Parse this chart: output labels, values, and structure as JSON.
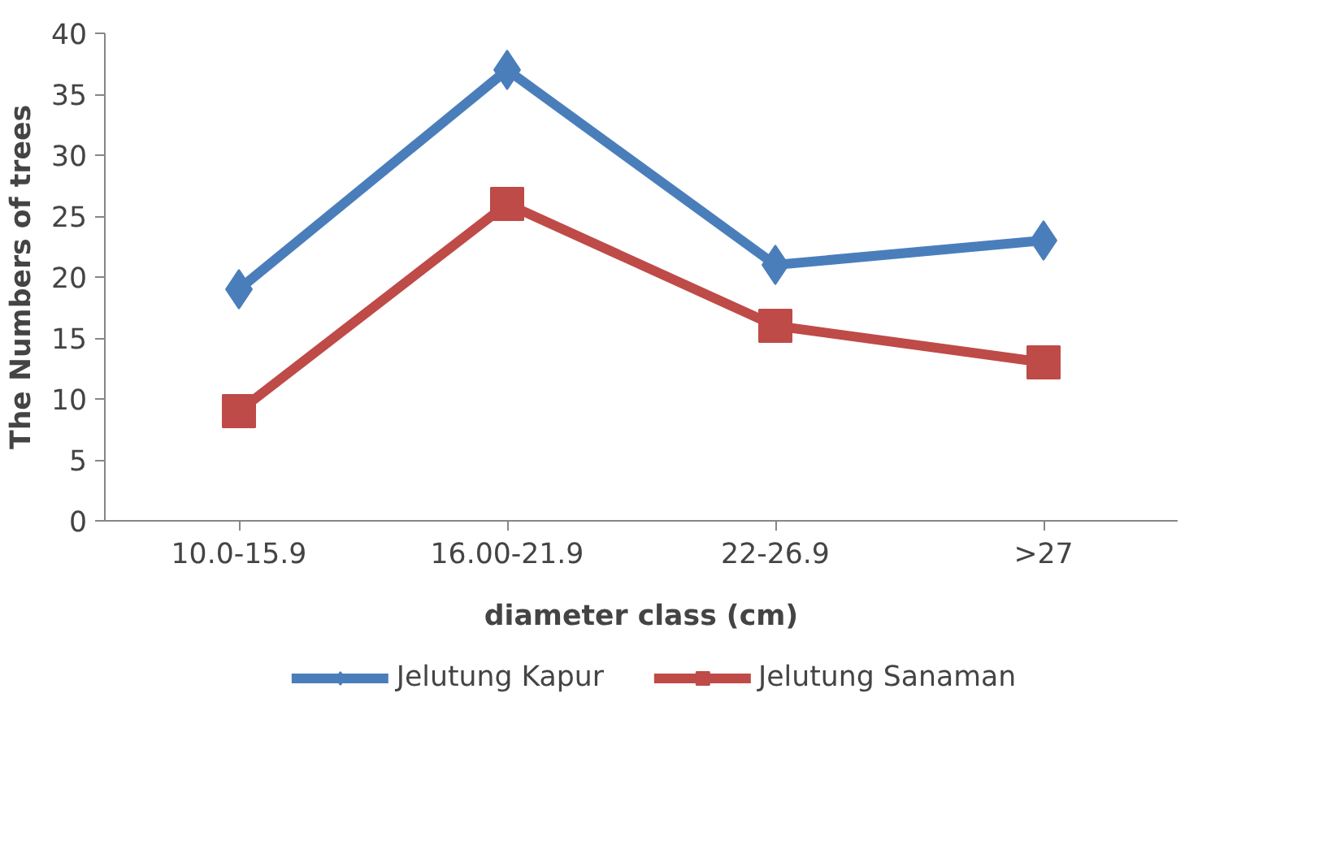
{
  "chart_data": {
    "type": "line",
    "xlabel": "diameter class (cm)",
    "ylabel": "The Numbers of trees",
    "categories": [
      "10.0-15.9",
      "16.00-21.9",
      "22-26.9",
      ">27"
    ],
    "series": [
      {
        "name": "Jelutung Kapur",
        "color": "#4a7ebb",
        "values": [
          19,
          37,
          21,
          23
        ],
        "marker": "diamond"
      },
      {
        "name": "Jelutung Sanaman",
        "color": "#be4b48",
        "values": [
          9,
          26,
          16,
          13
        ],
        "marker": "square"
      }
    ],
    "ylim": [
      0,
      40
    ],
    "yticks": [
      0,
      5,
      10,
      15,
      20,
      25,
      30,
      35,
      40
    ],
    "grid": false,
    "legend": "bottom",
    "line_style": "solid"
  }
}
